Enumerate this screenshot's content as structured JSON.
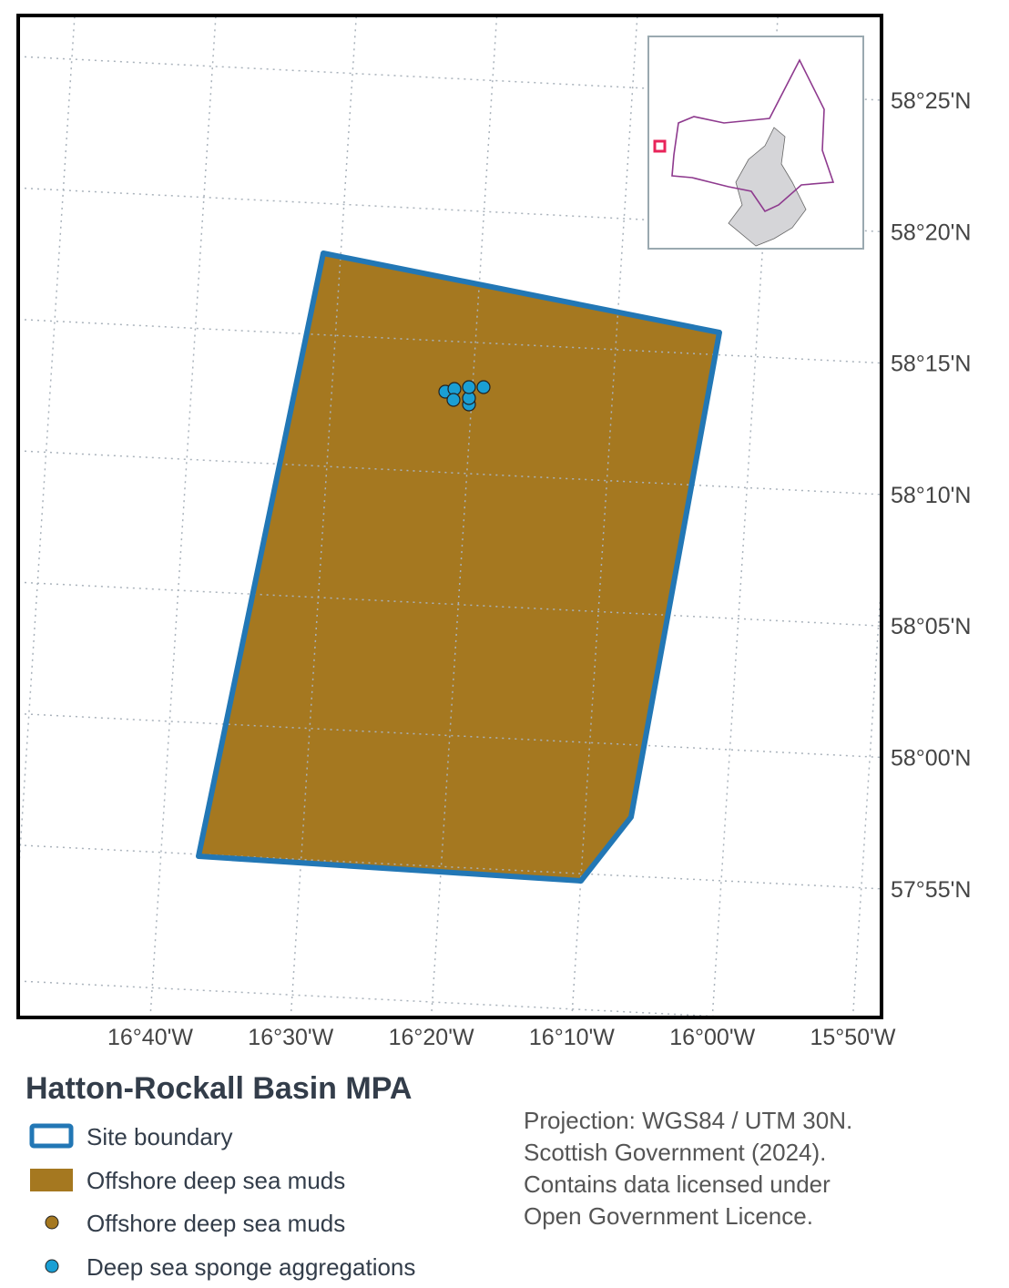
{
  "map": {
    "lon_labels": [
      "16°40'W",
      "16°30'W",
      "16°20'W",
      "16°10'W",
      "16°00'W",
      "15°50'W"
    ],
    "lat_labels": [
      "58°25'N",
      "58°20'N",
      "58°15'N",
      "58°10'N",
      "58°05'N",
      "58°00'N",
      "57°55'N"
    ]
  },
  "legend": {
    "title": "Hatton-Rockall Basin MPA",
    "items": [
      "Site boundary",
      "Offshore deep sea muds",
      "Offshore deep sea muds",
      "Deep sea sponge aggregations"
    ]
  },
  "credits": [
    "Projection: WGS84 / UTM 30N.",
    "Scottish Government (2024).",
    "Contains data licensed under",
    "Open Government Licence."
  ]
}
